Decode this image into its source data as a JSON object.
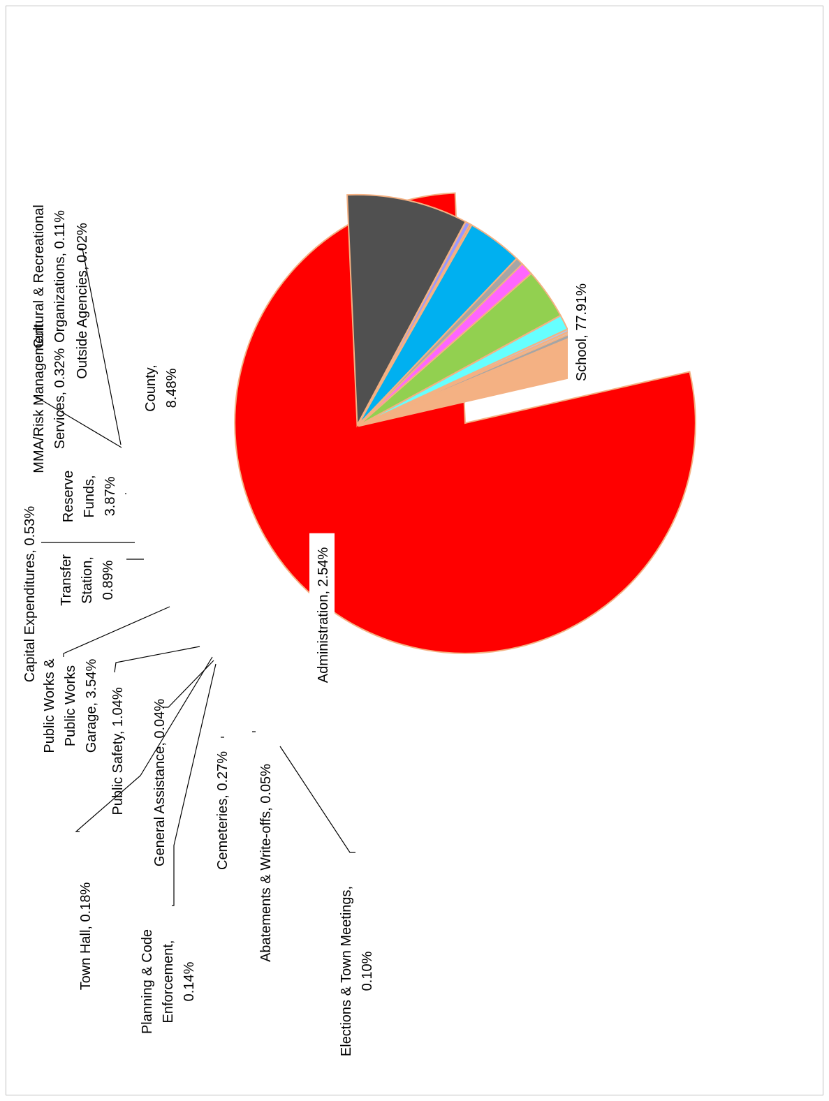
{
  "chart_data": {
    "type": "pie",
    "rotation_deg": -90,
    "legend": "none",
    "slice_border_color": "#F4B183",
    "slices": [
      {
        "name": "School",
        "value": 77.91,
        "label": "School, 77.91%",
        "color": "#FF0000"
      },
      {
        "name": "Administration",
        "value": 2.54,
        "label": "Administration, 2.54%",
        "color": "#F4B183"
      },
      {
        "name": "Elections & Town Meetings",
        "value": 0.1,
        "label": "Elections & Town Meetings, 0.10%",
        "color": "#A9D18E"
      },
      {
        "name": "Abatements & Write-offs",
        "value": 0.05,
        "label": "Abatements & Write-offs, 0.05%",
        "color": "#8FAADC"
      },
      {
        "name": "Cemeteries",
        "value": 0.27,
        "label": "Cemeteries, 0.27%",
        "color": "#A5A5A5"
      },
      {
        "name": "Planning & Code Enforcement",
        "value": 0.14,
        "label": "Planning & Code Enforcement, 0.14%",
        "color": "#C9C9C9"
      },
      {
        "name": "General Assistance",
        "value": 0.04,
        "label": "General Assistance, 0.04%",
        "color": "#FFD966"
      },
      {
        "name": "Town Hall",
        "value": 0.18,
        "label": "Town Hall, 0.18%",
        "color": "#B4C7E7"
      },
      {
        "name": "Public Safety",
        "value": 1.04,
        "label": "Public Safety, 1.04%",
        "color": "#66FFFF"
      },
      {
        "name": "Public Works & Public Works Garage",
        "value": 3.54,
        "label": "Public Works & Public Works Garage, 3.54%",
        "color": "#92D050"
      },
      {
        "name": "Transfer Station",
        "value": 0.89,
        "label": "Transfer Station, 0.89%",
        "color": "#FF66FF"
      },
      {
        "name": "Capital Expenditures",
        "value": 0.53,
        "label": "Capital Expenditures, 0.53%",
        "color": "#A6A6A6"
      },
      {
        "name": "Reserve Funds",
        "value": 3.87,
        "label": "Reserve Funds, 3.87%",
        "color": "#00B0F0"
      },
      {
        "name": "Outside Agencies",
        "value": 0.02,
        "label": "Outside Agencies, 0.02%",
        "color": "#FFC000"
      },
      {
        "name": "Cultural & Recreational Organizations",
        "value": 0.11,
        "label": "Cultural & Recreational Organizations, 0.11%",
        "color": "#C55A11"
      },
      {
        "name": "MMA/Risk Management Services",
        "value": 0.32,
        "label": "MMA/Risk Management Services, 0.32%",
        "color": "#9999FF"
      },
      {
        "name": "County",
        "value": 8.48,
        "label": "County, 8.48%",
        "color": "#505050"
      }
    ]
  }
}
